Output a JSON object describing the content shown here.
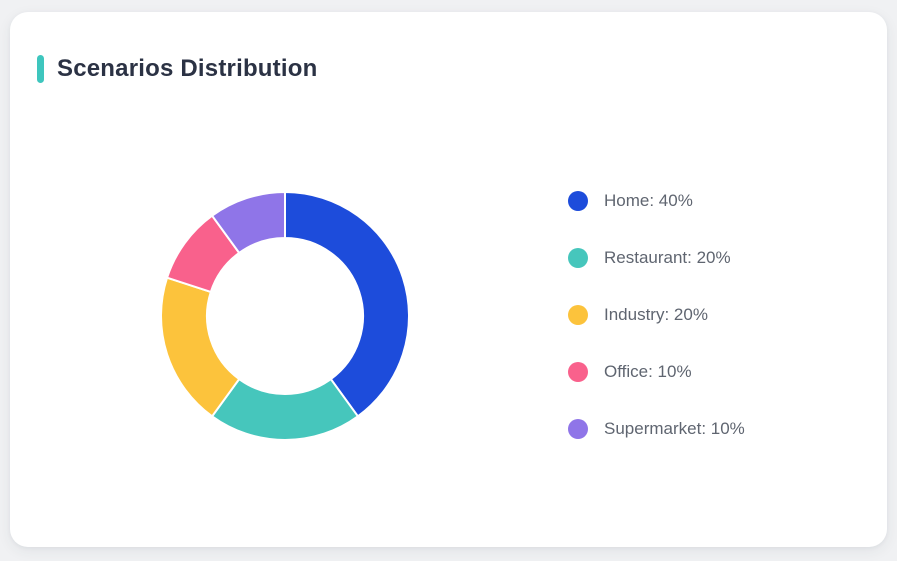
{
  "page": {
    "background_color": "#f0f1f3"
  },
  "card": {
    "title": "Scenarios Distribution",
    "accent_color": "#3ec6be",
    "background_color": "#ffffff"
  },
  "chart_data": {
    "type": "pie",
    "subtype": "donut",
    "title": "Scenarios Distribution",
    "categories": [
      "Home",
      "Restaurant",
      "Industry",
      "Office",
      "Supermarket"
    ],
    "values": [
      40,
      20,
      20,
      10,
      10
    ],
    "unit": "%",
    "colors": [
      "#1d4cdb",
      "#46c6bc",
      "#fcc33c",
      "#f9618c",
      "#8f75e8"
    ],
    "legend": [
      "Home: 40%",
      "Restaurant: 20%",
      "Industry: 20%",
      "Office: 10%",
      "Supermarket: 10%"
    ],
    "legend_position": "right",
    "start_angle": "top",
    "direction": "clockwise",
    "inner_radius_ratio": 0.63,
    "segment_border_color": "#ffffff"
  }
}
